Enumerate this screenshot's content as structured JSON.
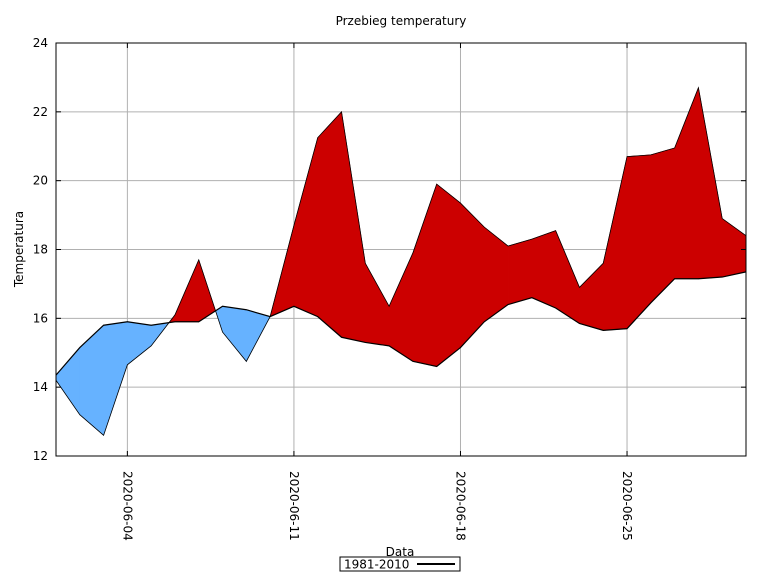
{
  "chart_data": {
    "type": "area",
    "title": "Przebieg temperatury",
    "xlabel": "Data",
    "ylabel": "Temperatura",
    "ylim": [
      12,
      24
    ],
    "yticks": [
      "12",
      "14",
      "16",
      "18",
      "20",
      "22",
      "24"
    ],
    "grid": true,
    "x_start": "2020-06-01",
    "x_end": "2020-06-30",
    "xticks": [
      {
        "day": 4,
        "label": "2020-06-04"
      },
      {
        "day": 11,
        "label": "2020-06-11"
      },
      {
        "day": 18,
        "label": "2020-06-18"
      },
      {
        "day": 25,
        "label": "2020-06-25"
      }
    ],
    "series": [
      {
        "name": "Temperatura",
        "values": [
          14.2,
          13.2,
          12.6,
          14.65,
          15.2,
          16.1,
          17.7,
          15.6,
          14.75,
          16.05,
          18.7,
          21.25,
          22.0,
          17.6,
          16.35,
          17.9,
          19.9,
          19.35,
          18.65,
          18.1,
          18.3,
          18.55,
          16.9,
          17.6,
          20.7,
          20.75,
          20.95,
          22.7,
          18.9,
          18.4
        ]
      },
      {
        "name": "1981-2010",
        "values": [
          14.35,
          15.15,
          15.8,
          15.9,
          15.8,
          15.9,
          15.9,
          16.35,
          16.25,
          16.05,
          16.35,
          16.05,
          15.45,
          15.3,
          15.2,
          14.75,
          14.6,
          15.15,
          15.9,
          16.4,
          16.6,
          16.3,
          15.85,
          15.65,
          15.7,
          16.45,
          17.15,
          17.15,
          17.2,
          17.35
        ]
      }
    ],
    "fill_above_color": "#cc0000",
    "fill_below_color": "#66b2ff",
    "line_color": "#000000",
    "legend": {
      "label": "1981-2010",
      "position": "bottom-center"
    }
  }
}
